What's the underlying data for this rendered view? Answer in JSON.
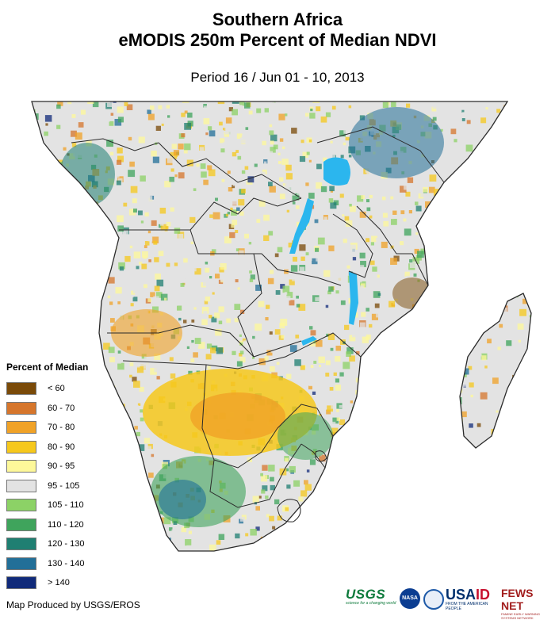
{
  "header": {
    "title_line1": "Southern Africa",
    "title_line2": "eMODIS 250m Percent of Median NDVI",
    "period": "Period 16 / Jun 01 - 10, 2013"
  },
  "legend": {
    "title": "Percent of Median",
    "items": [
      {
        "label": "< 60",
        "color": "#7a4a08"
      },
      {
        "label": "60 - 70",
        "color": "#d6762c"
      },
      {
        "label": "70 - 80",
        "color": "#f0a227"
      },
      {
        "label": "80 - 90",
        "color": "#f6c81c"
      },
      {
        "label": "90 - 95",
        "color": "#fdf89a"
      },
      {
        "label": "95 - 105",
        "color": "#e3e3e3"
      },
      {
        "label": "105 - 110",
        "color": "#8cd266"
      },
      {
        "label": "110 - 120",
        "color": "#3fa45c"
      },
      {
        "label": "120 - 130",
        "color": "#1f7f72"
      },
      {
        "label": "130 - 140",
        "color": "#226f98"
      },
      {
        "label": "> 140",
        "color": "#102a7a"
      }
    ]
  },
  "map_colors": {
    "water": "#2bb6ee",
    "border": "#2a2a2a",
    "base": "#e3e3e3"
  },
  "footer": {
    "credit": "Map Produced by USGS/EROS",
    "logos": {
      "usgs": "USGS",
      "usgs_tag": "science for a changing world",
      "nasa": "NASA",
      "usaid_a": "USA",
      "usaid_b": "ID",
      "usaid_tag": "FROM THE AMERICAN PEOPLE",
      "fews": "FEWS NET",
      "fews_tag": "FAMINE EARLY WARNING SYSTEMS NETWORK"
    }
  }
}
